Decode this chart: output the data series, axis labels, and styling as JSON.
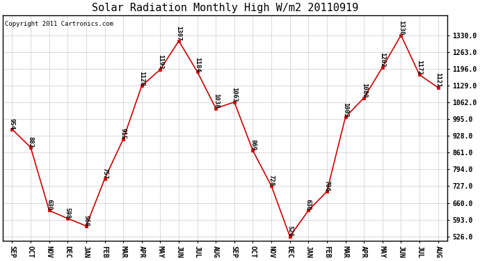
{
  "title": "Solar Radiation Monthly High W/m2 20110919",
  "copyright": "Copyright 2011 Cartronics.com",
  "categories": [
    "SEP",
    "OCT",
    "NOV",
    "DEC",
    "JAN",
    "FEB",
    "MAR",
    "APR",
    "MAY",
    "JUN",
    "JUL",
    "AUG",
    "SEP",
    "OCT",
    "NOV",
    "DEC",
    "JAN",
    "FEB",
    "MAR",
    "APR",
    "MAY",
    "JUN",
    "JUL",
    "AUG"
  ],
  "values": [
    954,
    882,
    630,
    598,
    568,
    757,
    915,
    1128,
    1193,
    1307,
    1184,
    1038,
    1063,
    869,
    728,
    526,
    630,
    706,
    1003,
    1080,
    1202,
    1330,
    1172,
    1121
  ],
  "line_color": "#cc0000",
  "marker_color": "#cc0000",
  "bg_color": "#ffffff",
  "plot_bg_color": "#ffffff",
  "grid_color": "#cccccc",
  "border_color": "#000000",
  "yticks": [
    526.0,
    593.0,
    660.0,
    727.0,
    794.0,
    861.0,
    928.0,
    995.0,
    1062.0,
    1129.0,
    1196.0,
    1263.0,
    1330.0
  ],
  "ylim_min": 526.0,
  "ylim_max": 1330.0,
  "title_fontsize": 11,
  "label_fontsize": 6.5,
  "tick_fontsize": 7,
  "copyright_fontsize": 6.5
}
